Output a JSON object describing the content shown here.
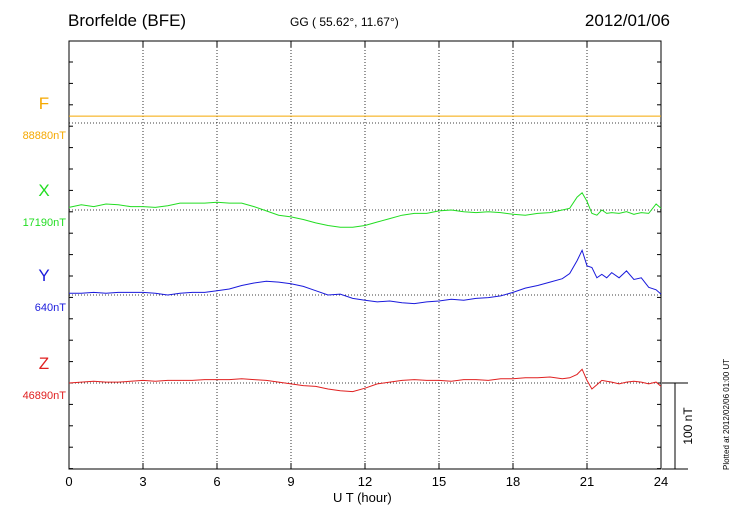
{
  "header": {
    "station": "Brorfelde (BFE)",
    "coords": "GG ( 55.62°,  11.67°)",
    "date": "2012/01/06",
    "plotted": "Plotted at 2012/02/06 01:00 UT"
  },
  "scale_bar_label": "100 nT",
  "chart_data": {
    "type": "line",
    "title": "Brorfelde (BFE)",
    "xlabel": "U T (hour)",
    "ylabel": "",
    "xlim": [
      0,
      24
    ],
    "x_ticks": [
      0,
      3,
      6,
      9,
      12,
      15,
      18,
      21,
      24
    ],
    "grid": true,
    "scale_nT": 100,
    "series": [
      {
        "name": "F",
        "baseline_label": "88880nT",
        "color": "#f5a800",
        "baseline": 88880,
        "x": [
          0,
          24
        ],
        "values": [
          88888,
          88888
        ]
      },
      {
        "name": "X",
        "baseline_label": "17190nT",
        "color": "#22dd22",
        "baseline": 17190,
        "x": [
          0,
          0.5,
          1,
          1.5,
          2,
          2.5,
          3,
          3.5,
          4,
          4.5,
          5,
          5.5,
          6,
          6.5,
          7,
          7.5,
          8,
          8.5,
          9,
          9.5,
          10,
          10.5,
          11,
          11.5,
          12,
          12.5,
          13,
          13.5,
          14,
          14.5,
          15,
          15.5,
          16,
          16.5,
          17,
          17.5,
          18,
          18.5,
          19,
          19.5,
          20,
          20.3,
          20.6,
          20.8,
          21,
          21.2,
          21.4,
          21.6,
          21.8,
          22,
          22.3,
          22.6,
          22.9,
          23.2,
          23.5,
          23.8,
          24
        ],
        "values": [
          17193,
          17196,
          17194,
          17197,
          17196,
          17194,
          17194,
          17193,
          17195,
          17198,
          17198,
          17198,
          17199,
          17198,
          17198,
          17194,
          17189,
          17184,
          17182,
          17179,
          17175,
          17172,
          17170,
          17170,
          17172,
          17176,
          17180,
          17184,
          17186,
          17186,
          17189,
          17190,
          17188,
          17187,
          17188,
          17187,
          17185,
          17184,
          17186,
          17187,
          17190,
          17192,
          17205,
          17210,
          17200,
          17186,
          17184,
          17190,
          17186,
          17187,
          17186,
          17188,
          17185,
          17187,
          17186,
          17197,
          17192
        ]
      },
      {
        "name": "Y",
        "baseline_label": "640nT",
        "color": "#1a1adc",
        "baseline": 640,
        "x": [
          0,
          0.5,
          1,
          1.5,
          2,
          2.5,
          3,
          3.5,
          4,
          4.5,
          5,
          5.5,
          6,
          6.5,
          7,
          7.5,
          8,
          8.5,
          9,
          9.5,
          10,
          10.5,
          11,
          11.5,
          12,
          12.5,
          13,
          13.5,
          14,
          14.5,
          15,
          15.5,
          16,
          16.5,
          17,
          17.5,
          18,
          18.5,
          19,
          19.5,
          20,
          20.3,
          20.6,
          20.8,
          21,
          21.2,
          21.4,
          21.6,
          21.8,
          22,
          22.3,
          22.6,
          22.9,
          23.2,
          23.5,
          23.8,
          24
        ],
        "values": [
          642,
          642,
          643,
          642,
          643,
          643,
          643,
          642,
          640,
          642,
          643,
          643,
          645,
          647,
          651,
          654,
          656,
          655,
          653,
          650,
          645,
          640,
          641,
          636,
          634,
          632,
          633,
          631,
          630,
          632,
          633,
          635,
          634,
          636,
          637,
          639,
          643,
          648,
          651,
          655,
          659,
          665,
          680,
          692,
          674,
          672,
          660,
          664,
          660,
          666,
          660,
          668,
          658,
          660,
          649,
          646,
          641
        ]
      },
      {
        "name": "Z",
        "baseline_label": "46890nT",
        "color": "#e02020",
        "baseline": 46890,
        "x": [
          0,
          0.5,
          1,
          1.5,
          2,
          2.5,
          3,
          3.5,
          4,
          4.5,
          5,
          5.5,
          6,
          6.5,
          7,
          7.5,
          8,
          8.5,
          9,
          9.5,
          10,
          10.5,
          11,
          11.5,
          12,
          12.5,
          13,
          13.5,
          14,
          14.5,
          15,
          15.5,
          16,
          16.5,
          17,
          17.5,
          18,
          18.5,
          19,
          19.5,
          20,
          20.3,
          20.6,
          20.8,
          21,
          21.2,
          21.4,
          21.6,
          21.8,
          22,
          22.3,
          22.6,
          22.9,
          23.2,
          23.5,
          23.8,
          24
        ],
        "values": [
          46890,
          46891,
          46892,
          46891,
          46891,
          46892,
          46893,
          46892,
          46893,
          46893,
          46893,
          46894,
          46894,
          46894,
          46895,
          46894,
          46893,
          46891,
          46889,
          46887,
          46886,
          46883,
          46881,
          46880,
          46884,
          46889,
          46891,
          46893,
          46894,
          46893,
          46893,
          46892,
          46894,
          46894,
          46893,
          46895,
          46895,
          46896,
          46896,
          46897,
          46895,
          46896,
          46900,
          46906,
          46893,
          46883,
          46888,
          46893,
          46892,
          46891,
          46889,
          46891,
          46892,
          46891,
          46889,
          46891,
          46886
        ]
      }
    ]
  }
}
